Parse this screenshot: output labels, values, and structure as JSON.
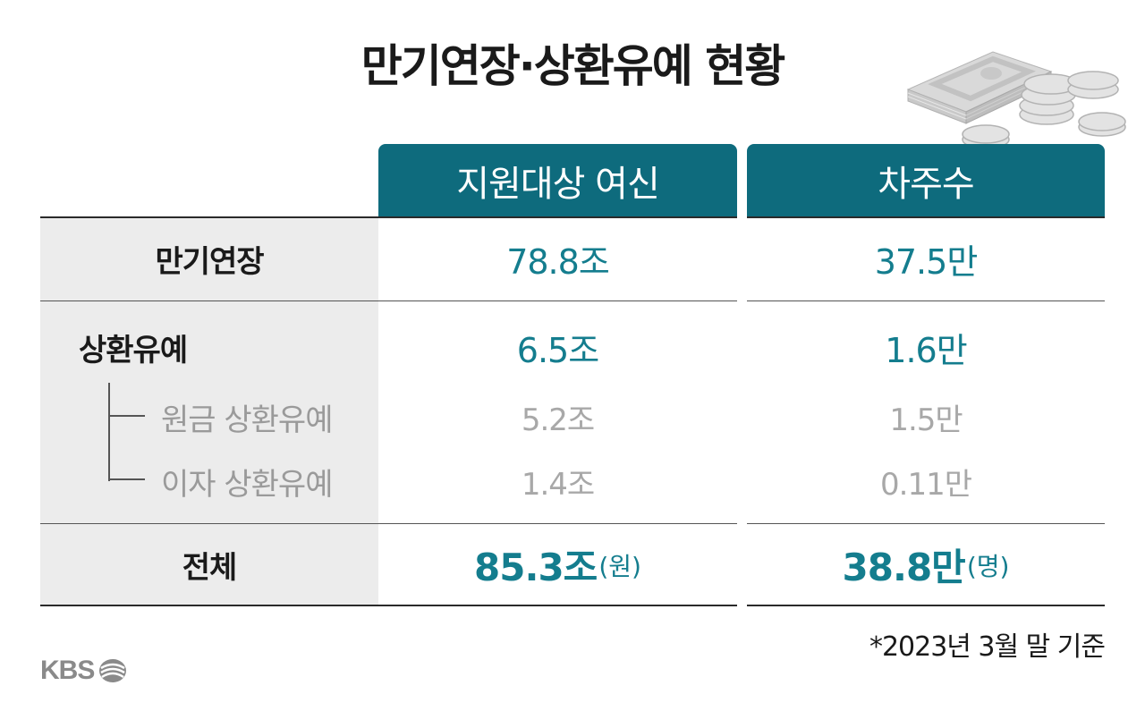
{
  "title": "만기연장·상환유예 현황",
  "colors": {
    "header_bg": "#0e6b7d",
    "value": "#147d8e",
    "sub": "#a8a8a8",
    "label_bg": "#ececec"
  },
  "headers": [
    "지원대상 여신",
    "차주수"
  ],
  "rows": {
    "extension": {
      "label": "만기연장",
      "credit": "78.8조",
      "borrowers": "37.5만"
    },
    "deferral": {
      "label": "상환유예",
      "credit": "6.5조",
      "borrowers": "1.6만"
    },
    "principal": {
      "label": "원금 상환유예",
      "credit": "5.2조",
      "borrowers": "1.5만"
    },
    "interest": {
      "label": "이자 상환유예",
      "credit": "1.4조",
      "borrowers": "0.11만"
    },
    "total": {
      "label": "전체",
      "credit": "85.3조",
      "credit_unit": "(원)",
      "borrowers": "38.8만",
      "borrowers_unit": "(명)"
    }
  },
  "note": "*2023년 3월 말 기준",
  "logo": {
    "text": "KBS",
    "icon": "kbs-logo-icon"
  },
  "decoration": {
    "icon": "money-coins-icon"
  }
}
